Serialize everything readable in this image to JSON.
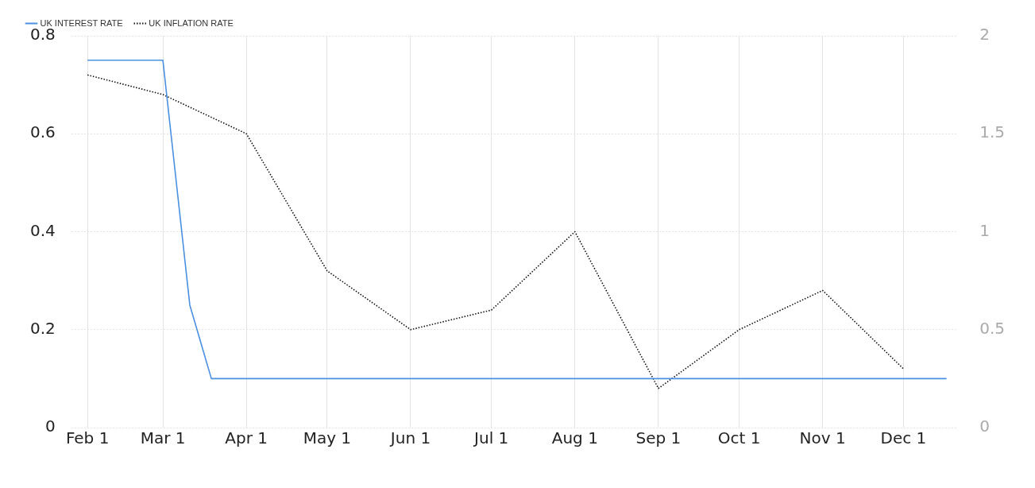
{
  "chart_data": {
    "type": "line",
    "xlim": [
      "--01-26",
      "--12-21"
    ],
    "xticks": [
      {
        "value": "--02-01",
        "label": "Feb 1"
      },
      {
        "value": "--03-01",
        "label": "Mar 1"
      },
      {
        "value": "--04-01",
        "label": "Apr 1"
      },
      {
        "value": "--05-01",
        "label": "May 1"
      },
      {
        "value": "--06-01",
        "label": "Jun 1"
      },
      {
        "value": "--07-01",
        "label": "Jul 1"
      },
      {
        "value": "--08-01",
        "label": "Aug 1"
      },
      {
        "value": "--09-01",
        "label": "Sep 1"
      },
      {
        "value": "--10-01",
        "label": "Oct 1"
      },
      {
        "value": "--11-01",
        "label": "Nov 1"
      },
      {
        "value": "--12-01",
        "label": "Dec 1"
      }
    ],
    "ylim": [
      0,
      0.8
    ],
    "yticks": [
      0,
      0.2,
      0.4,
      0.6,
      0.8
    ],
    "y2lim": [
      0,
      2
    ],
    "y2ticks": [
      0,
      0.5,
      1,
      1.5,
      2
    ],
    "grid": true,
    "legend": "top left",
    "marker": "none",
    "series": [
      {
        "name": "UK INTEREST RATE",
        "color": "#4a90e2",
        "line_style": "solid",
        "x": [
          "--02-01",
          "--03-01",
          "--03-11",
          "--03-19",
          "--12-17"
        ],
        "values": [
          0.75,
          0.75,
          0.25,
          0.1,
          0.1
        ]
      },
      {
        "name": "UK INFLATION RATE",
        "color": "#111111",
        "line_style": "dotted",
        "axis": "y2",
        "x": [
          "--02-01",
          "--03-01",
          "--04-01",
          "--05-01",
          "--06-01",
          "--07-01",
          "--08-01",
          "--09-01",
          "--10-01",
          "--11-01",
          "--12-01"
        ],
        "values": [
          1.8,
          1.7,
          1.5,
          0.8,
          0.5,
          0.6,
          1.0,
          0.2,
          0.5,
          0.7,
          0.3
        ]
      }
    ]
  }
}
